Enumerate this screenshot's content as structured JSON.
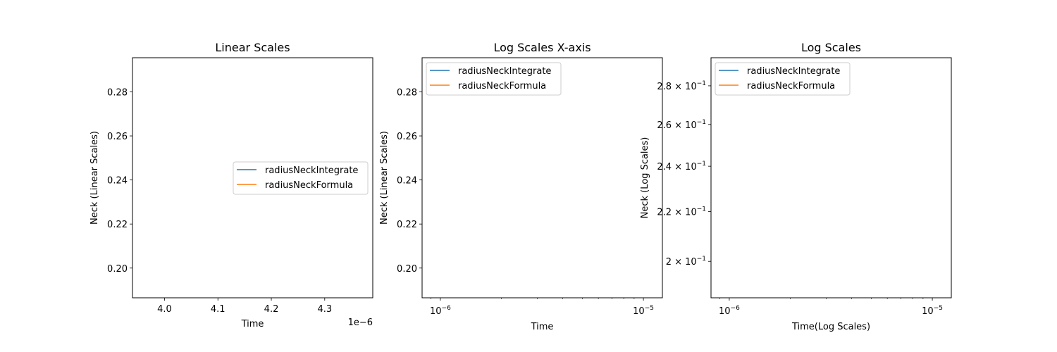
{
  "chart_data": [
    {
      "type": "line",
      "title": "Linear Scales",
      "xlabel": "Time",
      "ylabel": "Neck (Linear Scales)",
      "x_scale": "linear",
      "y_scale": "linear",
      "x_offset_label": "1e−6",
      "xlim": [
        3.94e-06,
        4.39e-06
      ],
      "ylim": [
        0.1865,
        0.2955
      ],
      "x_ticks": [
        {
          "value": 4e-06,
          "label": "4.0"
        },
        {
          "value": 4.1e-06,
          "label": "4.1"
        },
        {
          "value": 4.2e-06,
          "label": "4.2"
        },
        {
          "value": 4.3e-06,
          "label": "4.3"
        }
      ],
      "y_ticks": [
        {
          "value": 0.2,
          "label": "0.20"
        },
        {
          "value": 0.22,
          "label": "0.22"
        },
        {
          "value": 0.24,
          "label": "0.24"
        },
        {
          "value": 0.26,
          "label": "0.26"
        },
        {
          "value": 0.28,
          "label": "0.28"
        }
      ],
      "legend_position": "center-right",
      "series": [
        {
          "name": "radiusNeckIntegrate",
          "color": "#1f77b4",
          "x": [],
          "y": []
        },
        {
          "name": "radiusNeckFormula",
          "color": "#ff7f0e",
          "x": [],
          "y": []
        }
      ]
    },
    {
      "type": "line",
      "title": "Log Scales X-axis",
      "xlabel": "Time",
      "ylabel": "Neck (Linear Scales)",
      "x_scale": "log",
      "y_scale": "linear",
      "xlim": [
        8.13e-07,
        1.24e-05
      ],
      "ylim": [
        0.1865,
        0.2955
      ],
      "x_ticks": [
        {
          "value": 1e-06,
          "base": "10",
          "exp": "−6"
        },
        {
          "value": 1e-05,
          "base": "10",
          "exp": "−5"
        }
      ],
      "y_ticks": [
        {
          "value": 0.2,
          "label": "0.20"
        },
        {
          "value": 0.22,
          "label": "0.22"
        },
        {
          "value": 0.24,
          "label": "0.24"
        },
        {
          "value": 0.26,
          "label": "0.26"
        },
        {
          "value": 0.28,
          "label": "0.28"
        }
      ],
      "legend_position": "top-left",
      "series": [
        {
          "name": "radiusNeckIntegrate",
          "color": "#1f77b4",
          "x": [],
          "y": []
        },
        {
          "name": "radiusNeckFormula",
          "color": "#ff7f0e",
          "x": [],
          "y": []
        }
      ]
    },
    {
      "type": "line",
      "title": "Log Scales",
      "xlabel": "Time(Log Scales)",
      "ylabel": "Neck (Log Scales)",
      "x_scale": "log",
      "y_scale": "log",
      "xlim": [
        8.13e-07,
        1.24e-05
      ],
      "ylim": [
        0.1865,
        0.2955
      ],
      "x_ticks": [
        {
          "value": 1e-06,
          "base": "10",
          "exp": "−6"
        },
        {
          "value": 1e-05,
          "base": "10",
          "exp": "−5"
        }
      ],
      "y_ticks": [
        {
          "value": 0.2,
          "mant": "2",
          "base": "10",
          "exp": "−1"
        },
        {
          "value": 0.22,
          "mant": "2.2",
          "base": "10",
          "exp": "−1"
        },
        {
          "value": 0.24,
          "mant": "2.4",
          "base": "10",
          "exp": "−1"
        },
        {
          "value": 0.26,
          "mant": "2.6",
          "base": "10",
          "exp": "−1"
        },
        {
          "value": 0.28,
          "mant": "2.8",
          "base": "10",
          "exp": "−1"
        }
      ],
      "legend_position": "top-left",
      "series": [
        {
          "name": "radiusNeckIntegrate",
          "color": "#1f77b4",
          "x": [],
          "y": []
        },
        {
          "name": "radiusNeckFormula",
          "color": "#ff7f0e",
          "x": [],
          "y": []
        }
      ]
    }
  ]
}
